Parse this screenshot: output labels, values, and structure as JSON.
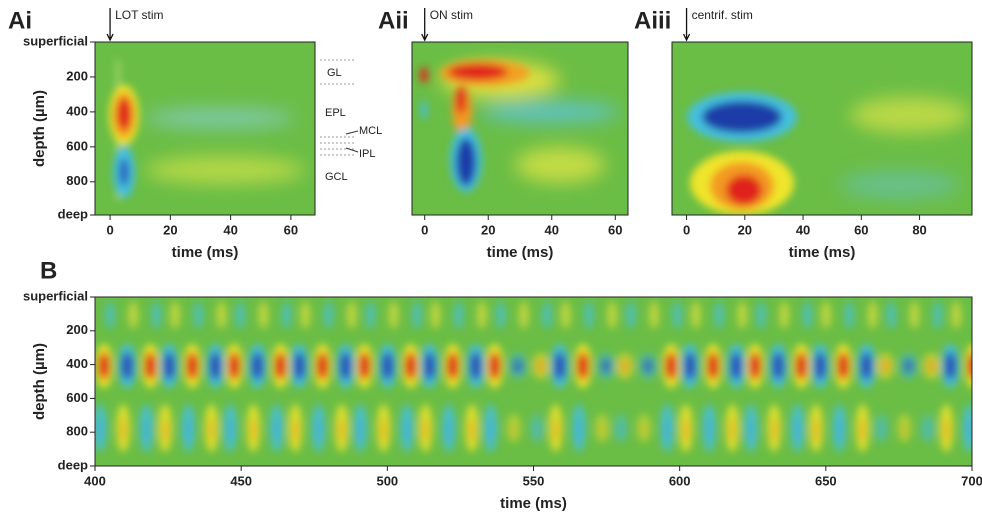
{
  "chart_data": [
    {
      "type": "heatmap",
      "title": "Ai",
      "stim": {
        "label": "LOT stim",
        "x": 0
      },
      "xlabel": "time (ms)",
      "ylabel": "depth (µm)",
      "xlim": [
        -5,
        68
      ],
      "xticks": [
        0,
        20,
        40,
        60
      ],
      "ylim": [
        0,
        990
      ],
      "yticks": [
        {
          "value": 0,
          "label": "superficial"
        },
        200,
        400,
        600,
        800,
        {
          "value": 990,
          "label": "deep"
        }
      ],
      "annotations": [
        "GL",
        "EPL",
        "MCL",
        "IPL",
        "GCL"
      ]
    },
    {
      "type": "heatmap",
      "title": "Aii",
      "stim": {
        "label": "ON stim",
        "x": 0
      },
      "xlabel": "time (ms)",
      "xlim": [
        -4,
        64
      ],
      "xticks": [
        0,
        20,
        40,
        60
      ],
      "ylim": [
        0,
        990
      ]
    },
    {
      "type": "heatmap",
      "title": "Aiii",
      "stim": {
        "label": "centrif. stim",
        "x": 0
      },
      "xlabel": "time (ms)",
      "xlim": [
        -5,
        98
      ],
      "xticks": [
        0,
        20,
        40,
        60,
        80
      ],
      "ylim": [
        0,
        990
      ]
    },
    {
      "type": "heatmap",
      "title": "B",
      "xlabel": "time (ms)",
      "ylabel": "depth (µm)",
      "xlim": [
        400,
        700
      ],
      "xticks": [
        400,
        450,
        500,
        550,
        600,
        650,
        700
      ],
      "ylim": [
        0,
        1000
      ],
      "yticks": [
        {
          "value": 0,
          "label": "superficial"
        },
        200,
        400,
        600,
        800,
        {
          "value": 1000,
          "label": "deep"
        }
      ]
    }
  ]
}
